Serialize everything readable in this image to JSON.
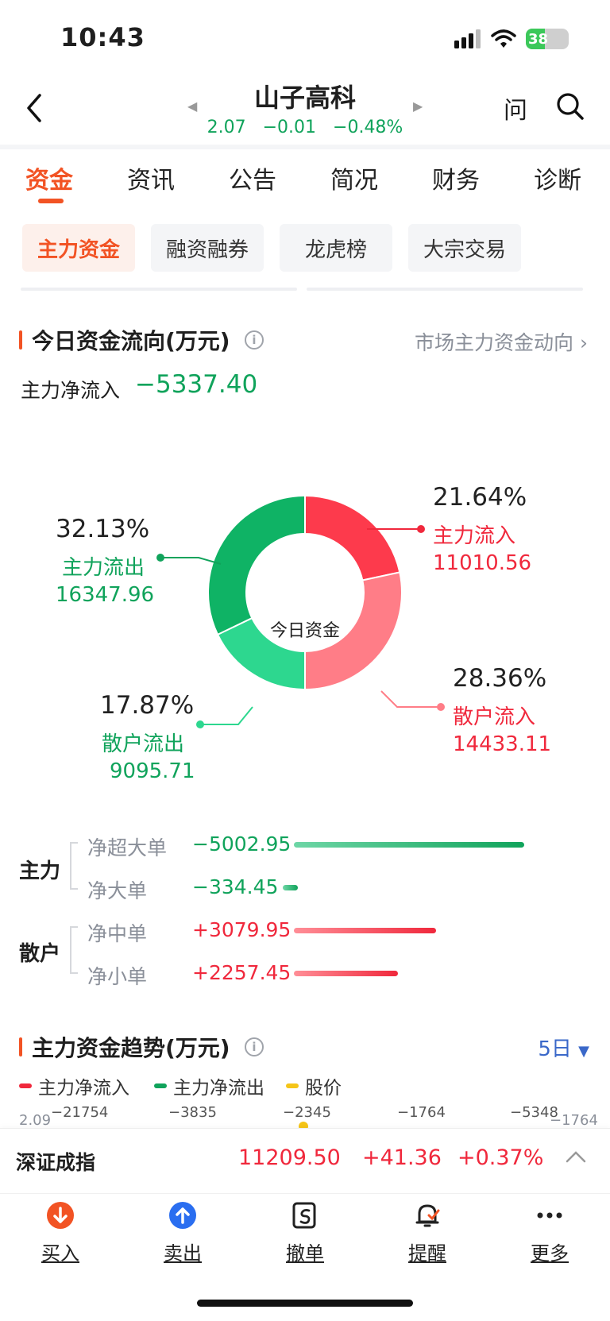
{
  "status": {
    "time": "10:43",
    "battery": "38"
  },
  "header": {
    "title": "山子高科",
    "price": "2.07",
    "change": "−0.01",
    "change_pct": "−0.48%",
    "ask_label": "问"
  },
  "tabs": [
    "资金",
    "资讯",
    "公告",
    "简况",
    "财务",
    "诊断"
  ],
  "subtabs": [
    "主力资金",
    "融资融券",
    "龙虎榜",
    "大宗交易"
  ],
  "today": {
    "title": "今日资金流向(万元)",
    "market_link": "市场主力资金动向",
    "net_label": "主力净流入",
    "net_value": "−5337.40",
    "donut_center": "今日资金",
    "segments": [
      {
        "pct": "21.64%",
        "label": "主力流入",
        "value": "11010.56",
        "share": 21.64,
        "color": "#fd3a4c"
      },
      {
        "pct": "28.36%",
        "label": "散户流入",
        "value": "14433.11",
        "share": 28.36,
        "color": "#ff7d87"
      },
      {
        "pct": "17.87%",
        "label": "散户流出",
        "value": "9095.71",
        "share": 17.87,
        "color": "#2dd78f"
      },
      {
        "pct": "32.13%",
        "label": "主力流出",
        "value": "16347.96",
        "share": 32.13,
        "color": "#0fb365"
      }
    ]
  },
  "orders": {
    "main_label": "主力",
    "retail_label": "散户",
    "rows": [
      {
        "label": "净超大单",
        "value": "−5002.95",
        "amount": -5002.95
      },
      {
        "label": "净大单",
        "value": "−334.45",
        "amount": -334.45
      },
      {
        "label": "净中单",
        "value": "+3079.95",
        "amount": 3079.95
      },
      {
        "label": "净小单",
        "value": "+2257.45",
        "amount": 2257.45
      }
    ]
  },
  "trend": {
    "title": "主力资金趋势(万元)",
    "period": "5日",
    "legend": [
      "主力净流入",
      "主力净流出",
      "股价"
    ],
    "price_left": "2.09",
    "price_right": "1764",
    "values": [
      "−21754",
      "−3835",
      "−2345",
      "−1764",
      "−5348"
    ]
  },
  "index": {
    "name": "深证成指",
    "price": "11209.50",
    "change": "+41.36",
    "change_pct": "+0.37%"
  },
  "toolbar": [
    "买入",
    "卖出",
    "撤单",
    "提醒",
    "更多"
  ]
}
